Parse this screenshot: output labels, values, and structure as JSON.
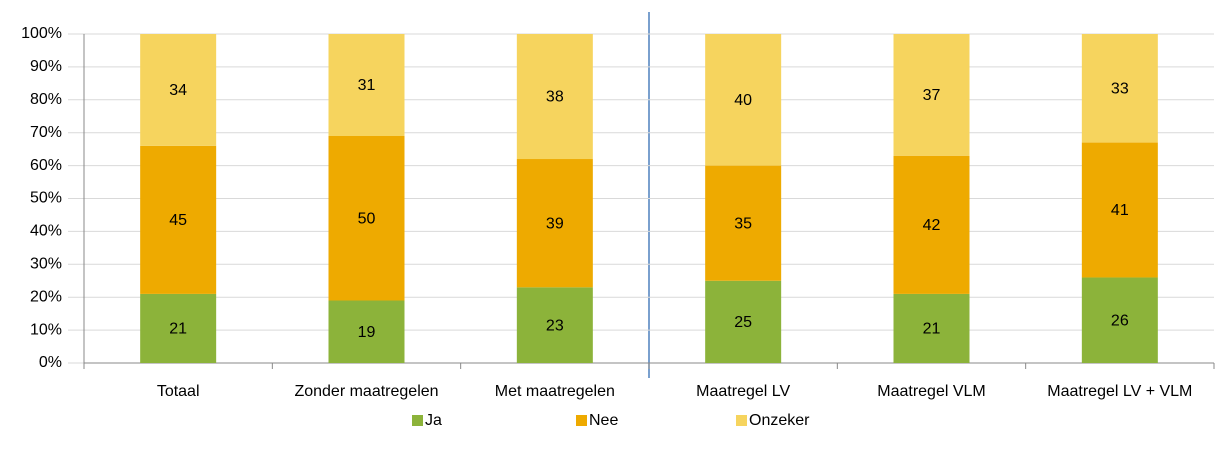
{
  "chart_data": {
    "type": "stacked_bar",
    "categories": [
      "Totaal",
      "Zonder maatregelen",
      "Met maatregelen",
      "Maatregel LV",
      "Maatregel VLM",
      "Maatregel LV + VLM"
    ],
    "series": [
      {
        "name": "Ja",
        "color": "#8cb33a",
        "values": [
          21,
          19,
          23,
          25,
          21,
          26
        ]
      },
      {
        "name": "Nee",
        "color": "#eeaa00",
        "values": [
          45,
          50,
          39,
          35,
          42,
          41
        ]
      },
      {
        "name": "Onzeker",
        "color": "#f6d45e",
        "values": [
          34,
          31,
          38,
          40,
          37,
          33
        ]
      }
    ],
    "ylim": [
      0,
      100
    ],
    "yticks": [
      {
        "value": 0,
        "label": "0%"
      },
      {
        "value": 10,
        "label": "10%"
      },
      {
        "value": 20,
        "label": "20%"
      },
      {
        "value": 30,
        "label": "30%"
      },
      {
        "value": 40,
        "label": "40%"
      },
      {
        "value": 50,
        "label": "50%"
      },
      {
        "value": 60,
        "label": "60%"
      },
      {
        "value": 70,
        "label": "70%"
      },
      {
        "value": 80,
        "label": "80%"
      },
      {
        "value": 90,
        "label": "90%"
      },
      {
        "value": 100,
        "label": "100%"
      }
    ],
    "grid": true,
    "legend": "bottom"
  }
}
